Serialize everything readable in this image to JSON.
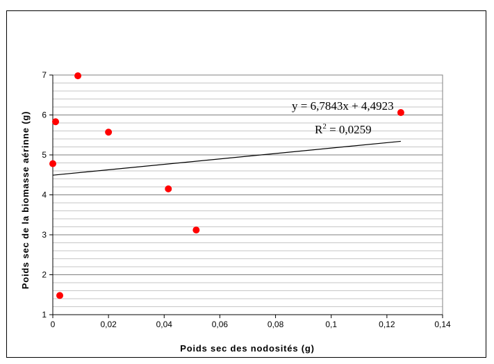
{
  "chart_data": {
    "type": "scatter",
    "title": "",
    "xlabel": "Poids sec des nodosités (g)",
    "ylabel": "Poids sec de la biomasse aérinne (g)",
    "xlim": [
      0,
      0.14
    ],
    "ylim": [
      1,
      7
    ],
    "xticks": [
      0,
      0.02,
      0.04,
      0.06,
      0.08,
      0.1,
      0.12,
      0.14
    ],
    "xtick_labels": [
      "0",
      "0,02",
      "0,04",
      "0,06",
      "0,08",
      "0,1",
      "0,12",
      "0,14"
    ],
    "yticks": [
      1,
      2,
      3,
      4,
      5,
      6,
      7
    ],
    "ytick_labels": [
      "1",
      "2",
      "3",
      "4",
      "5",
      "6",
      "7"
    ],
    "grid": true,
    "legend": "none",
    "marker_color": "#ff0000",
    "series": [
      {
        "points": [
          {
            "x": 0.0,
            "y": 4.78
          },
          {
            "x": 0.001,
            "y": 5.83
          },
          {
            "x": 0.0025,
            "y": 1.48
          },
          {
            "x": 0.009,
            "y": 6.98
          },
          {
            "x": 0.02,
            "y": 5.57
          },
          {
            "x": 0.0415,
            "y": 4.15
          },
          {
            "x": 0.0515,
            "y": 3.12
          },
          {
            "x": 0.125,
            "y": 6.06
          }
        ]
      }
    ],
    "trendline": {
      "type": "linear",
      "slope": 6.7843,
      "intercept": 4.4923,
      "x_range": [
        0,
        0.125
      ],
      "equation": "y = 6,7843x + 4,4923",
      "r2_label": "R",
      "r2_sup": "2",
      "r2_value": " = 0,0259"
    }
  }
}
